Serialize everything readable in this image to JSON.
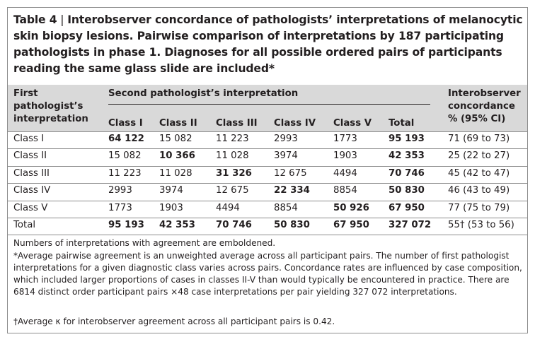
{
  "caption": {
    "label": "Table 4",
    "separator": " | ",
    "text": "Interobserver concordance of pathologists’ interpretations of melanocytic skin biopsy lesions. Pairwise comparison of interpretations by 187 participating pathologists in phase 1. Diagnoses for all possible ordered pairs of participants reading the same glass slide are included*"
  },
  "headers": {
    "first_col": [
      "First",
      "pathologist’s",
      "interpretation"
    ],
    "group": "Second pathologist’s interpretation",
    "sub": [
      "Class I",
      "Class II",
      "Class III",
      "Class IV",
      "Class V",
      "Total"
    ],
    "last_col": [
      "Interobserver",
      "concordance",
      "% (95% CI)"
    ]
  },
  "rows": [
    {
      "label": "Class I",
      "cells": [
        "64 122",
        "15 082",
        "11 223",
        "2993",
        "1773",
        "95 193"
      ],
      "bold": [
        0,
        5
      ],
      "concordance": "71 (69 to 73)"
    },
    {
      "label": "Class II",
      "cells": [
        "15 082",
        "10 366",
        "11 028",
        "3974",
        "1903",
        "42 353"
      ],
      "bold": [
        1,
        5
      ],
      "concordance": "25 (22 to 27)"
    },
    {
      "label": "Class III",
      "cells": [
        "11 223",
        "11 028",
        "31 326",
        "12 675",
        "4494",
        "70 746"
      ],
      "bold": [
        2,
        5
      ],
      "concordance": "45 (42 to 47)"
    },
    {
      "label": "Class IV",
      "cells": [
        "2993",
        "3974",
        "12 675",
        "22 334",
        "8854",
        "50 830"
      ],
      "bold": [
        3,
        5
      ],
      "concordance": "46 (43 to 49)"
    },
    {
      "label": "Class V",
      "cells": [
        "1773",
        "1903",
        "4494",
        "8854",
        "50 926",
        "67 950"
      ],
      "bold": [
        4,
        5
      ],
      "concordance": "77 (75 to 79)"
    },
    {
      "label": "Total",
      "cells": [
        "95 193",
        "42 353",
        "70 746",
        "50 830",
        "67 950",
        "327 072"
      ],
      "bold": [
        0,
        1,
        2,
        3,
        4,
        5
      ],
      "concordance": "55† (53 to 56)"
    }
  ],
  "notes": [
    "Numbers of interpretations with agreement are emboldened.",
    "*Average pairwise agreement is an unweighted average across all participant pairs. The number of first pathologist interpretations for a given diagnostic class varies across pairs. Concordance rates are influenced by case composition, which included larger proportions of cases in classes II-V than would typically be encountered in practice. There are 6814 distinct order participant pairs ×48 case interpretations per pair yielding 327 072 interpretations.",
    "†Average κ for interobserver agreement across all participant pairs is 0.42."
  ]
}
